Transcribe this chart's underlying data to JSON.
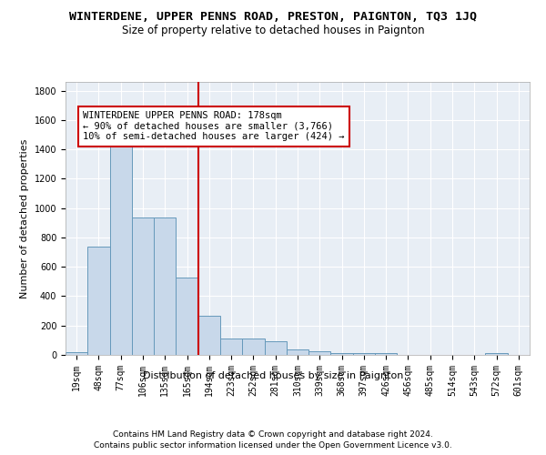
{
  "title": "WINTERDENE, UPPER PENNS ROAD, PRESTON, PAIGNTON, TQ3 1JQ",
  "subtitle": "Size of property relative to detached houses in Paignton",
  "xlabel": "Distribution of detached houses by size in Paignton",
  "ylabel": "Number of detached properties",
  "bar_color": "#c8d8ea",
  "bar_edge_color": "#6699bb",
  "bin_labels": [
    "19sqm",
    "48sqm",
    "77sqm",
    "106sqm",
    "135sqm",
    "165sqm",
    "194sqm",
    "223sqm",
    "252sqm",
    "281sqm",
    "310sqm",
    "339sqm",
    "368sqm",
    "397sqm",
    "426sqm",
    "456sqm",
    "485sqm",
    "514sqm",
    "543sqm",
    "572sqm",
    "601sqm"
  ],
  "bar_heights": [
    20,
    740,
    1420,
    935,
    935,
    530,
    265,
    110,
    110,
    90,
    40,
    25,
    15,
    15,
    15,
    0,
    0,
    0,
    0,
    15,
    0
  ],
  "vline_x": 5.5,
  "vline_color": "#cc0000",
  "annotation_text": "WINTERDENE UPPER PENNS ROAD: 178sqm\n← 90% of detached houses are smaller (3,766)\n10% of semi-detached houses are larger (424) →",
  "annotation_box_color": "white",
  "annotation_edge_color": "#cc0000",
  "ylim": [
    0,
    1860
  ],
  "yticks": [
    0,
    200,
    400,
    600,
    800,
    1000,
    1200,
    1400,
    1600,
    1800
  ],
  "footer1": "Contains HM Land Registry data © Crown copyright and database right 2024.",
  "footer2": "Contains public sector information licensed under the Open Government Licence v3.0.",
  "fig_background_color": "#ffffff",
  "plot_bg_color": "#e8eef5",
  "grid_color": "white",
  "title_fontsize": 9.5,
  "subtitle_fontsize": 8.5,
  "axis_label_fontsize": 8,
  "tick_fontsize": 7,
  "annotation_fontsize": 7.5,
  "footer_fontsize": 6.5
}
